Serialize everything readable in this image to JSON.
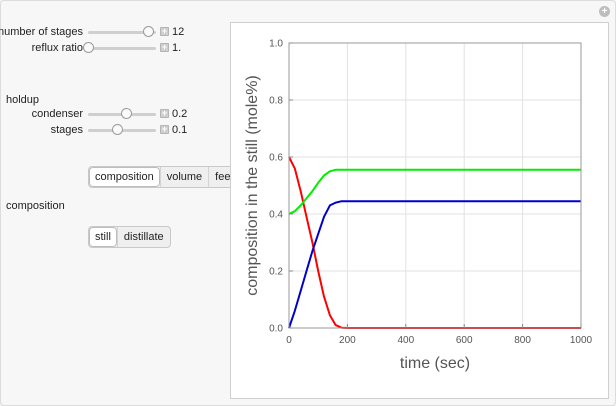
{
  "controls": {
    "number_of_stages": {
      "label": "number of stages",
      "value": "12",
      "fraction": 0.88
    },
    "reflux_ratio": {
      "label": "reflux ratio",
      "value": "1.",
      "fraction": 0.0
    },
    "holdup_label": "holdup",
    "condenser": {
      "label": "condenser",
      "value": "0.2",
      "fraction": 0.56
    },
    "stages": {
      "label": "stages",
      "value": "0.1",
      "fraction": 0.42
    }
  },
  "view_selector": {
    "options": [
      "composition",
      "volume",
      "feed"
    ],
    "selected": "composition"
  },
  "composition_section_label": "composition",
  "composition_selector": {
    "options": [
      "still",
      "distillate"
    ],
    "selected": "still"
  },
  "chart_data": {
    "type": "line",
    "xlabel": "time (sec)",
    "ylabel": "composition in the still (mole%)",
    "xlim": [
      0,
      1000
    ],
    "ylim": [
      0,
      1.0
    ],
    "xticks": [
      0,
      200,
      400,
      600,
      800,
      1000
    ],
    "yticks": [
      0.0,
      0.2,
      0.4,
      0.6,
      0.8,
      1.0
    ],
    "grid": true,
    "series": [
      {
        "color": "#ff0000",
        "x": [
          0,
          20,
          40,
          60,
          80,
          100,
          120,
          140,
          160,
          180,
          200,
          400,
          600,
          800,
          1000
        ],
        "y": [
          0.6,
          0.56,
          0.48,
          0.39,
          0.3,
          0.2,
          0.11,
          0.045,
          0.01,
          0.001,
          0.0,
          0.0,
          0.0,
          0.0,
          0.0
        ]
      },
      {
        "color": "#00ee00",
        "x": [
          0,
          20,
          40,
          60,
          80,
          100,
          120,
          140,
          160,
          180,
          200,
          400,
          600,
          800,
          1000
        ],
        "y": [
          0.4,
          0.41,
          0.43,
          0.455,
          0.48,
          0.51,
          0.535,
          0.55,
          0.555,
          0.555,
          0.555,
          0.555,
          0.555,
          0.555,
          0.555
        ]
      },
      {
        "color": "#0000cc",
        "x": [
          0,
          20,
          40,
          60,
          80,
          100,
          120,
          140,
          160,
          180,
          200,
          400,
          600,
          800,
          1000
        ],
        "y": [
          0.0,
          0.06,
          0.13,
          0.2,
          0.27,
          0.33,
          0.39,
          0.43,
          0.44,
          0.445,
          0.445,
          0.445,
          0.445,
          0.445,
          0.445
        ]
      }
    ]
  }
}
